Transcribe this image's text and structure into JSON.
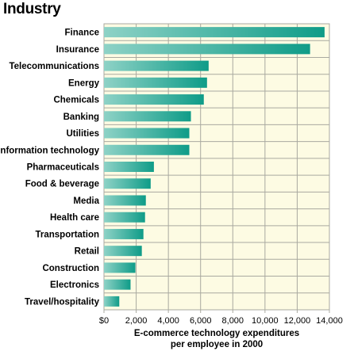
{
  "chart_data": {
    "type": "bar",
    "orientation": "horizontal",
    "title": "Industry",
    "xlabel_lines": [
      "E-commerce technology expenditures",
      "per employee in 2000"
    ],
    "categories": [
      "Finance",
      "Insurance",
      "Telecommunications",
      "Energy",
      "Chemicals",
      "Banking",
      "Utilities",
      "Information technology",
      "Pharmaceuticals",
      "Food & beverage",
      "Media",
      "Health care",
      "Transportation",
      "Retail",
      "Construction",
      "Electronics",
      "Travel/hospitality"
    ],
    "values": [
      13700,
      12800,
      6500,
      6400,
      6200,
      5400,
      5300,
      5300,
      3100,
      2900,
      2600,
      2550,
      2450,
      2350,
      1950,
      1650,
      950
    ],
    "xlim": [
      0,
      14000
    ],
    "xticks": [
      0,
      2000,
      4000,
      6000,
      8000,
      10000,
      12000,
      14000
    ],
    "xtick_labels": [
      "$0",
      "2,000",
      "4,000",
      "6,000",
      "8,000",
      "10,000",
      "12,000",
      "14,000"
    ],
    "grid": true,
    "colors": {
      "plot_background": "#fdfbe3",
      "grid": "#a9a9a0",
      "bar_light": "#8ed2c6",
      "bar_dark": "#0f9c88"
    }
  }
}
